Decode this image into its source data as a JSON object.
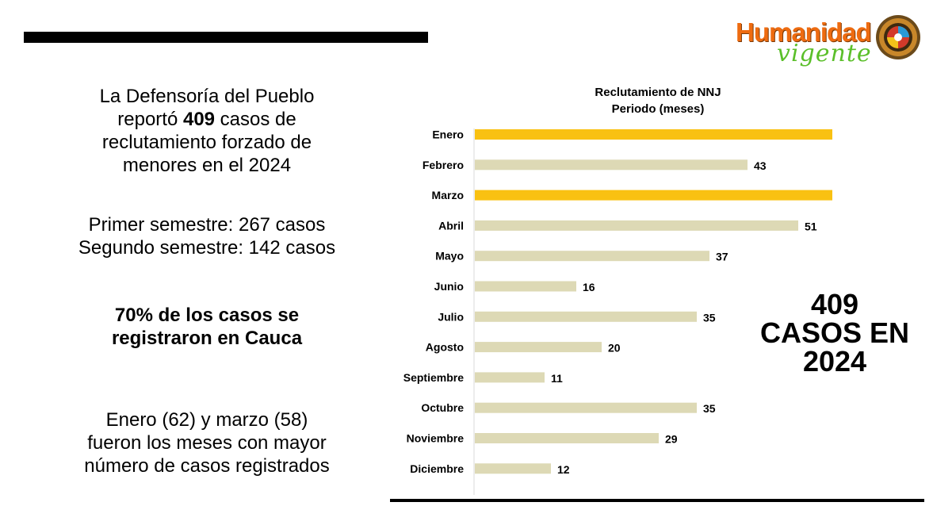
{
  "intro": {
    "line1": "La Defensoría del Pueblo",
    "line2_pre": "reportó ",
    "line2_bold": "409",
    "line2_post": " casos de",
    "line3": "reclutamiento forzado de",
    "line4": "menores en el 2024"
  },
  "semesters": {
    "line1": "Primer semestre: 267 casos",
    "line2": "Segundo semestre: 142 casos"
  },
  "cauca": {
    "line1": "70% de los casos se",
    "line2": "registraron en Cauca"
  },
  "peak": {
    "line1": "Enero (62) y marzo (58)",
    "line2": "fueron los meses con mayor",
    "line3": "número de casos registrados"
  },
  "logo": {
    "word1": "Humanidad",
    "word2": "vigente"
  },
  "big_label": {
    "line1": "409",
    "line2": "CASOS EN",
    "line3": "2024"
  },
  "chart_data": {
    "type": "bar",
    "orientation": "horizontal",
    "title": [
      "Reclutamiento de NNJ",
      "Periodo (meses)"
    ],
    "categories": [
      "Enero",
      "Febrero",
      "Marzo",
      "Abril",
      "Mayo",
      "Junio",
      "Julio",
      "Agosto",
      "Septiembre",
      "Octubre",
      "Noviembre",
      "Diciembre"
    ],
    "values": [
      62,
      43,
      58,
      51,
      37,
      16,
      35,
      20,
      11,
      35,
      29,
      12
    ],
    "highlight": [
      true,
      false,
      true,
      false,
      false,
      false,
      false,
      false,
      false,
      false,
      false,
      false
    ],
    "colors": {
      "highlight": "#f9c112",
      "default": "#ddd9b5"
    },
    "xlim": [
      0,
      62
    ],
    "grid": false,
    "legend": "none"
  }
}
